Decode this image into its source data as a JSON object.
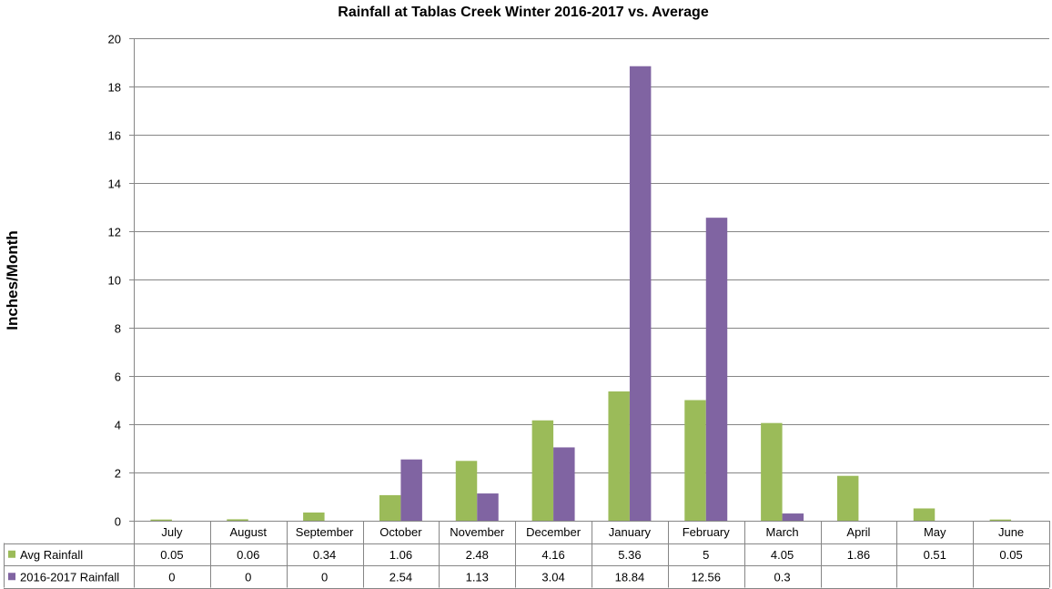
{
  "chart_data": {
    "type": "bar",
    "title": "Rainfall at Tablas Creek Winter 2016-2017 vs. Average",
    "xlabel": "",
    "ylabel": "Inches/Month",
    "ylim": [
      0,
      20
    ],
    "yticks": [
      0,
      2,
      4,
      6,
      8,
      10,
      12,
      14,
      16,
      18,
      20
    ],
    "grid": true,
    "legend": "data-table",
    "categories": [
      "July",
      "August",
      "September",
      "October",
      "November",
      "December",
      "January",
      "February",
      "March",
      "April",
      "May",
      "June"
    ],
    "series": [
      {
        "name": "Avg Rainfall",
        "color": "#9bbb59",
        "values": [
          0.05,
          0.06,
          0.34,
          1.06,
          2.48,
          4.16,
          5.36,
          5,
          4.05,
          1.86,
          0.51,
          0.05
        ]
      },
      {
        "name": "2016-2017 Rainfall",
        "color": "#8064a2",
        "values": [
          0,
          0,
          0,
          2.54,
          1.13,
          3.04,
          18.84,
          12.56,
          0.3,
          null,
          null,
          null
        ]
      }
    ]
  }
}
